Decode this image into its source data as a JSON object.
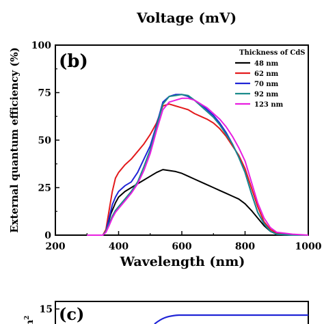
{
  "top_panel": {
    "xlabel": "Voltage (mV)"
  },
  "chart_data": {
    "type": "line",
    "panel_label": "(b)",
    "xlabel": "Wavelength (nm)",
    "ylabel": "External quantum efficiency (%)",
    "xlim": [
      200,
      1000
    ],
    "ylim": [
      0,
      100
    ],
    "xticks": [
      "200",
      "400",
      "600",
      "800",
      "1000"
    ],
    "yticks": [
      "0",
      "25",
      "50",
      "75",
      "100"
    ],
    "grid": false,
    "legend": {
      "title": "Thickness of CdS",
      "placement": "top-right"
    },
    "series": [
      {
        "name": "48 nm",
        "color": "#000000",
        "x": [
          300,
          350,
          360,
          375,
          390,
          400,
          420,
          440,
          460,
          480,
          500,
          520,
          540,
          560,
          580,
          600,
          620,
          640,
          660,
          680,
          700,
          720,
          740,
          760,
          780,
          800,
          820,
          840,
          860,
          880,
          900,
          950,
          1000
        ],
        "y": [
          0,
          0,
          2,
          11,
          17,
          20,
          23,
          25,
          27,
          29,
          31,
          33,
          34.5,
          34,
          33.5,
          32.5,
          31,
          29.5,
          28,
          26.5,
          25,
          23.5,
          22,
          20.5,
          19,
          16.5,
          13,
          9,
          5,
          2,
          0.5,
          0,
          0
        ]
      },
      {
        "name": "62 nm",
        "color": "#e31a1c",
        "x": [
          300,
          350,
          360,
          370,
          380,
          390,
          400,
          420,
          440,
          460,
          480,
          500,
          520,
          540,
          560,
          580,
          600,
          620,
          640,
          660,
          680,
          700,
          720,
          740,
          760,
          780,
          800,
          820,
          840,
          860,
          880,
          900,
          950,
          1000
        ],
        "y": [
          0,
          0,
          3,
          13,
          23,
          30,
          33,
          37,
          40,
          44,
          48,
          53,
          59,
          68,
          69,
          68,
          67,
          66,
          64,
          62.5,
          61,
          59,
          56,
          52,
          47,
          42,
          35,
          25,
          15,
          7,
          3,
          1,
          0,
          0
        ]
      },
      {
        "name": "70 nm",
        "color": "#1f24d6",
        "x": [
          300,
          350,
          360,
          370,
          380,
          390,
          400,
          420,
          440,
          460,
          480,
          500,
          520,
          540,
          560,
          580,
          600,
          620,
          640,
          660,
          680,
          700,
          720,
          740,
          760,
          780,
          800,
          820,
          840,
          860,
          880,
          900,
          950,
          1000
        ],
        "y": [
          0,
          0,
          2,
          9,
          16,
          20,
          23,
          26,
          28,
          33,
          40,
          47,
          58,
          70,
          73,
          74,
          74,
          73,
          71,
          69,
          66,
          63,
          59,
          54,
          48,
          41,
          33,
          22,
          12,
          6,
          2,
          0.5,
          0,
          0
        ]
      },
      {
        "name": "92 nm",
        "color": "#1a8a8a",
        "x": [
          300,
          350,
          360,
          370,
          380,
          390,
          400,
          420,
          440,
          460,
          480,
          500,
          520,
          540,
          560,
          580,
          600,
          620,
          640,
          660,
          680,
          700,
          720,
          740,
          760,
          780,
          800,
          820,
          840,
          860,
          880,
          900,
          950,
          1000
        ],
        "y": [
          0,
          0,
          2,
          6,
          10,
          13,
          15,
          19,
          23,
          28,
          36,
          45,
          57,
          69,
          73,
          73.5,
          74,
          73.5,
          71,
          68,
          65,
          62,
          58,
          53,
          48,
          41,
          33,
          22,
          12,
          6,
          2,
          0.5,
          0,
          0
        ]
      },
      {
        "name": "123 nm",
        "color": "#e81ee0",
        "x": [
          300,
          350,
          360,
          370,
          380,
          390,
          400,
          420,
          440,
          460,
          480,
          500,
          520,
          540,
          560,
          580,
          600,
          620,
          640,
          660,
          680,
          700,
          720,
          740,
          760,
          780,
          800,
          820,
          840,
          860,
          880,
          900,
          950,
          1000
        ],
        "y": [
          0,
          0,
          1.5,
          5,
          9,
          12,
          14,
          18,
          22,
          27,
          34,
          43,
          55,
          66,
          70,
          71,
          72,
          72,
          71,
          69,
          67,
          64,
          61,
          57,
          52,
          46,
          39,
          28,
          17,
          9,
          4,
          1.5,
          0.5,
          0
        ]
      }
    ]
  },
  "bottom_panel": {
    "panel_label": "(c)",
    "ytick": "15",
    "ylabel_fragment": "n",
    "ylabel_superscript": "2"
  }
}
